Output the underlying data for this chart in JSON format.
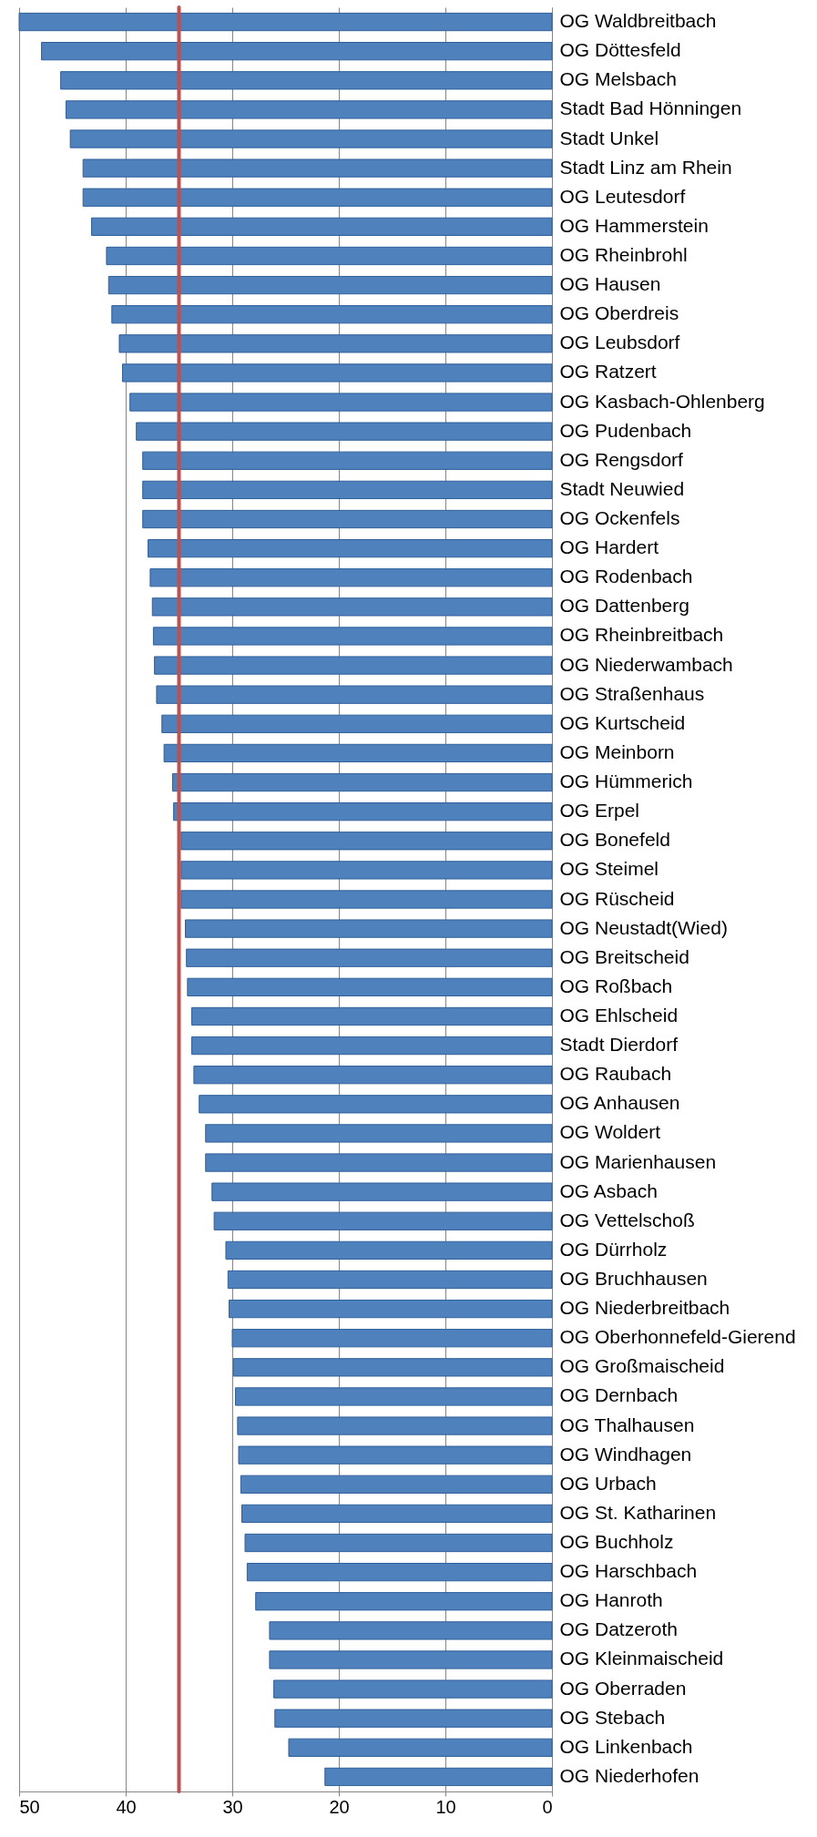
{
  "chart_data": {
    "type": "bar",
    "orientation": "horizontal",
    "categories": [
      "OG Waldbreitbach",
      "OG Döttesfeld",
      "OG Melsbach",
      "Stadt Bad Hönningen",
      "Stadt Unkel",
      "Stadt Linz am Rhein",
      "OG Leutesdorf",
      "OG Hammerstein",
      "OG Rheinbrohl",
      "OG Hausen",
      "OG Oberdreis",
      "OG Leubsdorf",
      "OG Ratzert",
      "OG Kasbach-Ohlenberg",
      "OG Pudenbach",
      "OG Rengsdorf",
      "Stadt Neuwied",
      "OG Ockenfels",
      "OG Hardert",
      "OG Rodenbach",
      "OG Dattenberg",
      "OG Rheinbreitbach",
      "OG Niederwambach",
      "OG Straßenhaus",
      "OG Kurtscheid",
      "OG Meinborn",
      "OG Hümmerich",
      "OG Erpel",
      "OG Bonefeld",
      "OG Steimel",
      "OG Rüscheid",
      "OG Neustadt(Wied)",
      "OG Breitscheid",
      "OG Roßbach",
      "OG Ehlscheid",
      "Stadt Dierdorf",
      "OG Raubach",
      "OG Anhausen",
      "OG Woldert",
      "OG Marienhausen",
      "OG Asbach",
      "OG Vettelschoß",
      "OG Dürrholz",
      "OG Bruchhausen",
      "OG Niederbreitbach",
      "OG Oberhonnefeld-Gierend",
      "OG Großmaischeid",
      "OG Dernbach",
      "OG Thalhausen",
      "OG Windhagen",
      "OG Urbach",
      "OG St. Katharinen",
      "OG Buchholz",
      "OG Harschbach",
      "OG Hanroth",
      "OG Datzeroth",
      "OG Kleinmaischeid",
      "OG Oberraden",
      "OG Stebach",
      "OG Linkenbach",
      "OG Niederhofen"
    ],
    "values": [
      50.0,
      47.9,
      46.1,
      45.6,
      45.2,
      44.0,
      44.0,
      43.2,
      41.8,
      41.6,
      41.3,
      40.6,
      40.3,
      39.6,
      39.0,
      38.4,
      38.4,
      38.4,
      37.9,
      37.7,
      37.5,
      37.4,
      37.3,
      37.1,
      36.6,
      36.4,
      35.6,
      35.5,
      34.8,
      34.8,
      34.8,
      34.4,
      34.3,
      34.2,
      33.8,
      33.8,
      33.6,
      33.1,
      32.5,
      32.5,
      31.9,
      31.7,
      30.6,
      30.4,
      30.3,
      30.0,
      29.9,
      29.7,
      29.5,
      29.4,
      29.2,
      29.1,
      28.8,
      28.6,
      27.8,
      26.5,
      26.5,
      26.1,
      26.0,
      24.7,
      21.3
    ],
    "color": "#4f81bd",
    "xlim": [
      50,
      0
    ],
    "xticks": [
      0,
      10,
      20,
      30,
      40,
      50
    ],
    "grid": "x",
    "ref_lines": [
      {
        "axis": "x",
        "value": 35,
        "color": "#c0504d"
      }
    ]
  }
}
